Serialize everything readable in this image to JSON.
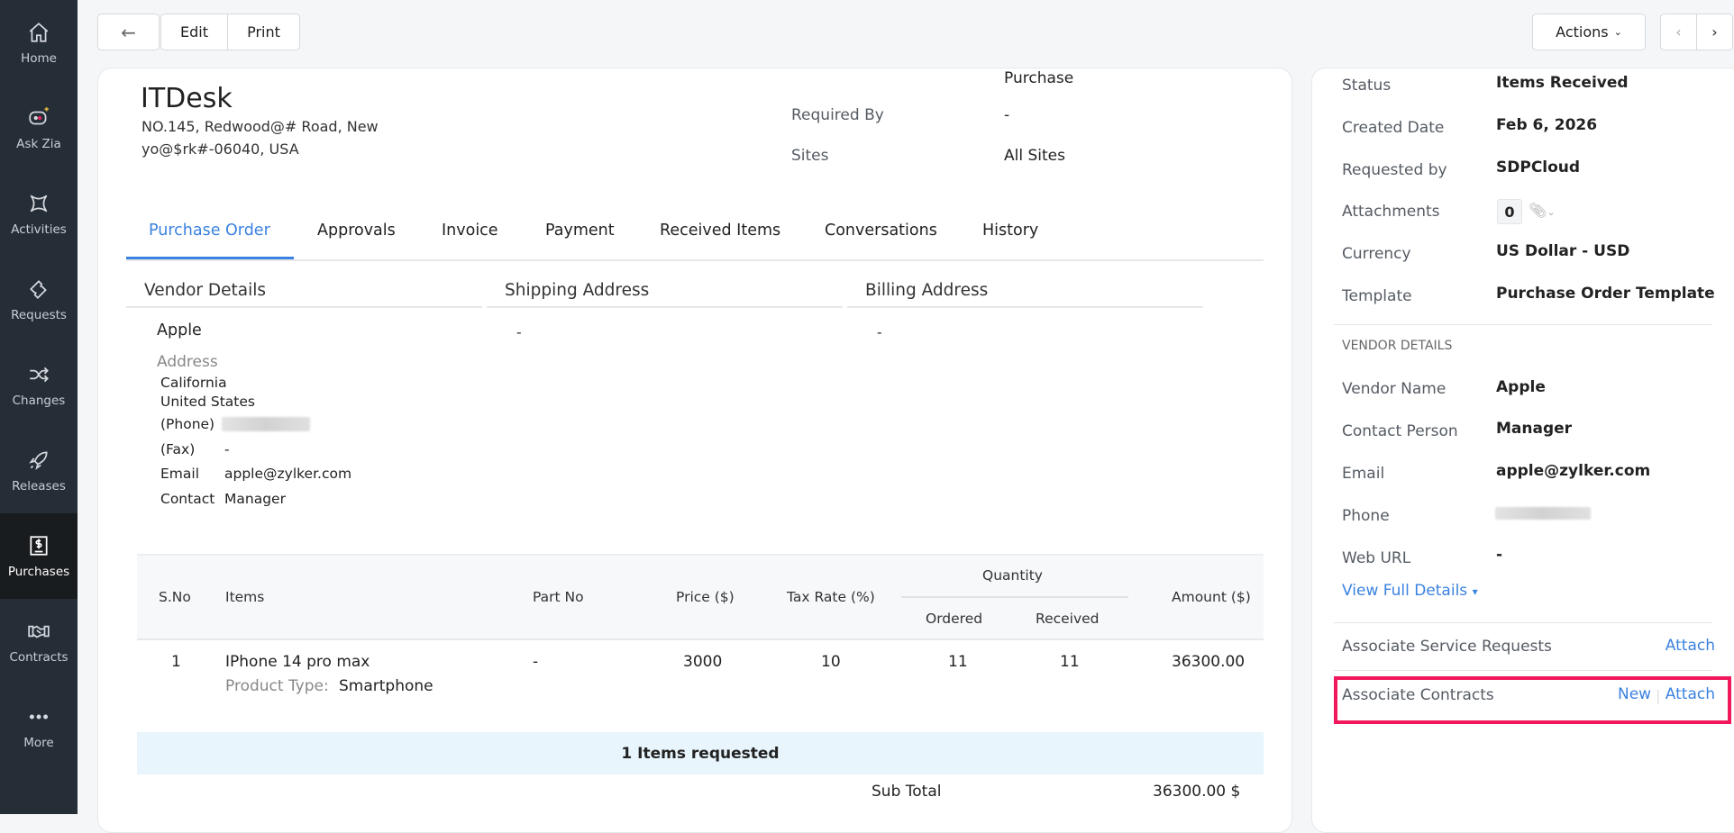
{
  "sidebar": {
    "items": [
      {
        "label": "Home",
        "icon": "home-icon"
      },
      {
        "label": "Ask Zia",
        "icon": "zia-chat-icon"
      },
      {
        "label": "Activities",
        "icon": "activities-icon"
      },
      {
        "label": "Requests",
        "icon": "ticket-icon"
      },
      {
        "label": "Changes",
        "icon": "shuffle-icon"
      },
      {
        "label": "Releases",
        "icon": "rocket-icon"
      },
      {
        "label": "Purchases",
        "icon": "dollar-document-icon",
        "active": true
      },
      {
        "label": "Contracts",
        "icon": "handshake-icon"
      },
      {
        "label": "More",
        "icon": "more-dots-icon"
      }
    ]
  },
  "toolbar": {
    "edit": "Edit",
    "print": "Print",
    "actions": "Actions"
  },
  "header": {
    "org": "ITDesk",
    "address_line1": "NO.145, Redwood@# Road, New",
    "address_line2": "yo@$rk#-06040, USA",
    "purchase_value": "Purchase",
    "required_by_label": "Required By",
    "required_by_value": "-",
    "sites_label": "Sites",
    "sites_value": "All Sites"
  },
  "tabs": [
    "Purchase Order",
    "Approvals",
    "Invoice",
    "Payment",
    "Received Items",
    "Conversations",
    "History"
  ],
  "active_tab": "Purchase Order",
  "sections": {
    "vendor": "Vendor Details",
    "shipping": "Shipping Address",
    "billing": "Billing Address"
  },
  "vendor": {
    "name": "Apple",
    "address_label": "Address",
    "line1": "California",
    "line2": "United States",
    "phone_label": "(Phone)",
    "fax_label": "(Fax)",
    "fax": "-",
    "email_label": "Email",
    "email": "apple@zylker.com",
    "contact_label": "Contact",
    "contact": "Manager"
  },
  "shipping_value": "-",
  "billing_value": "-",
  "table": {
    "headers": {
      "sno": "S.No",
      "items": "Items",
      "part": "Part No",
      "price": "Price ($)",
      "tax": "Tax Rate (%)",
      "quantity": "Quantity",
      "ordered": "Ordered",
      "received": "Received",
      "amount": "Amount ($)"
    },
    "rows": [
      {
        "sno": "1",
        "item": "IPhone 14 pro max",
        "product_type_label": "Product Type:",
        "product_type": "Smartphone",
        "part": "-",
        "price": "3000",
        "tax": "10",
        "ordered": "11",
        "received": "11",
        "amount": "36300.00"
      }
    ],
    "summary": "1 Items requested",
    "subtotal_label": "Sub Total",
    "subtotal": "36300.00 $"
  },
  "details": {
    "status_label": "Status",
    "status": "Items Received",
    "created_label": "Created Date",
    "created": "Feb 6, 2026",
    "requested_label": "Requested by",
    "requested": "SDPCloud",
    "attachments_label": "Attachments",
    "attachments_count": "0",
    "currency_label": "Currency",
    "currency": "US Dollar - USD",
    "template_label": "Template",
    "template": "Purchase Order Template",
    "vendor_heading": "VENDOR DETAILS",
    "vendor_name_label": "Vendor Name",
    "vendor_name": "Apple",
    "contact_label": "Contact Person",
    "contact": "Manager",
    "email_label": "Email",
    "email": "apple@zylker.com",
    "phone_label": "Phone",
    "web_label": "Web URL",
    "web": "-",
    "view_full": "View Full Details",
    "assoc_sr": "Associate Service Requests",
    "assoc_sr_attach": "Attach",
    "assoc_contracts": "Associate Contracts",
    "new": "New",
    "attach": "Attach"
  },
  "colors": {
    "accent": "#3b82e0",
    "highlight": "#f0185a",
    "sidebar": "#252d36"
  }
}
